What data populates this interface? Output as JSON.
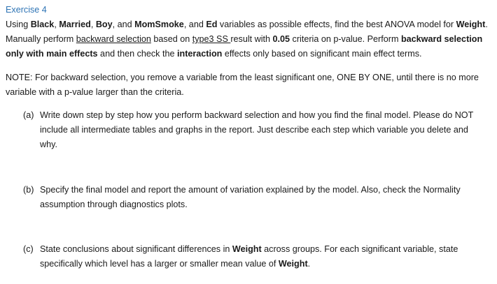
{
  "heading": "Exercise 4",
  "intro": {
    "t1": "Using ",
    "var_black": "Black",
    "sep1": ", ",
    "var_married": "Married",
    "sep2": ", ",
    "var_boy": "Boy",
    "sep3": ", and ",
    "var_momsmoke": "MomSmoke",
    "sep4": ", and ",
    "var_ed": "Ed",
    "t2": " variables as possible effects, find the best ANOVA model for ",
    "var_weight": "Weight",
    "t3": ". Manually perform ",
    "backward_link": "backward selection",
    "t4": " based on ",
    "type3_link": "type3 SS ",
    "t5": "result with ",
    "criteria": "0.05",
    "t6": " criteria on p-value. Perform ",
    "bold_backward_main": "backward selection only with main effects",
    "t7": " and then check the ",
    "bold_interaction": "interaction",
    "t8": " effects only based on significant main effect terms."
  },
  "note": "NOTE: For backward selection, you remove a variable from the least significant one, ONE BY ONE, until there is no more variable with a p-value larger than the criteria.",
  "items": [
    {
      "marker": "(a)",
      "text": "Write down step by step how you perform backward selection and how you find the final model.  Please do NOT include all intermediate tables and graphs in the report. Just describe each step which variable you delete and why."
    },
    {
      "marker": "(b)",
      "text": "Specify the final model and report the amount of variation explained by the model. Also, check the Normality assumption through diagnostics plots."
    },
    {
      "marker": "(c)",
      "t1": "State conclusions about significant differences in ",
      "bold1": "Weight",
      "t2": " across groups. For each significant variable, state specifically which level has a larger or smaller mean value of ",
      "bold2": "Weight",
      "t3": "."
    }
  ]
}
